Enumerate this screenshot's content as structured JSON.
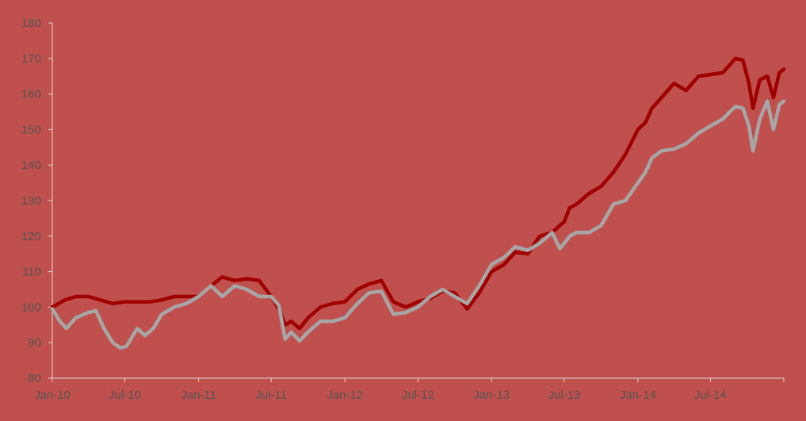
{
  "chart_data": {
    "type": "line",
    "title": "",
    "xlabel": "",
    "ylabel": "",
    "ylim": [
      80,
      180
    ],
    "yticks": [
      80,
      90,
      100,
      110,
      120,
      130,
      140,
      150,
      160,
      170,
      180
    ],
    "xlim": [
      "2010-01-01",
      "2014-12-31"
    ],
    "xticks": [
      {
        "date": "2010-01-01",
        "label": "Jan-10"
      },
      {
        "date": "2010-07-01",
        "label": "Jul-10"
      },
      {
        "date": "2011-01-01",
        "label": "Jan-11"
      },
      {
        "date": "2011-07-01",
        "label": "Jul-11"
      },
      {
        "date": "2012-01-01",
        "label": "Jan-12"
      },
      {
        "date": "2012-07-01",
        "label": "Jul-12"
      },
      {
        "date": "2013-01-01",
        "label": "Jan-13"
      },
      {
        "date": "2013-07-01",
        "label": "Jul-13"
      },
      {
        "date": "2014-01-01",
        "label": "Jan-14"
      },
      {
        "date": "2014-07-01",
        "label": "Jul-14"
      }
    ],
    "grid": false,
    "legend": "none",
    "background_color": "#c0504d",
    "series": [
      {
        "color": "#a00000",
        "points": [
          [
            "2010-01-01",
            100
          ],
          [
            "2010-02-01",
            102
          ],
          [
            "2010-03-01",
            103
          ],
          [
            "2010-04-01",
            103
          ],
          [
            "2010-05-01",
            102
          ],
          [
            "2010-06-01",
            101
          ],
          [
            "2010-07-01",
            101.5
          ],
          [
            "2010-08-01",
            101.5
          ],
          [
            "2010-09-01",
            101.5
          ],
          [
            "2010-10-01",
            102
          ],
          [
            "2010-11-01",
            103
          ],
          [
            "2010-12-01",
            103
          ],
          [
            "2011-01-01",
            103
          ],
          [
            "2011-02-01",
            106
          ],
          [
            "2011-03-01",
            108.5
          ],
          [
            "2011-04-01",
            107.5
          ],
          [
            "2011-05-01",
            108
          ],
          [
            "2011-06-01",
            107.5
          ],
          [
            "2011-07-01",
            103
          ],
          [
            "2011-07-20",
            99.5
          ],
          [
            "2011-08-05",
            95
          ],
          [
            "2011-08-20",
            96
          ],
          [
            "2011-09-10",
            94
          ],
          [
            "2011-10-01",
            97
          ],
          [
            "2011-11-01",
            100
          ],
          [
            "2011-12-01",
            101
          ],
          [
            "2012-01-01",
            101.5
          ],
          [
            "2012-02-01",
            105
          ],
          [
            "2012-03-01",
            106.5
          ],
          [
            "2012-04-01",
            107.5
          ],
          [
            "2012-05-01",
            101.5
          ],
          [
            "2012-06-01",
            100
          ],
          [
            "2012-07-01",
            101.5
          ],
          [
            "2012-08-01",
            102.5
          ],
          [
            "2012-09-01",
            104.5
          ],
          [
            "2012-10-01",
            104
          ],
          [
            "2012-11-01",
            99.5
          ],
          [
            "2012-12-01",
            104
          ],
          [
            "2013-01-01",
            110
          ],
          [
            "2013-02-01",
            112
          ],
          [
            "2013-03-01",
            115.5
          ],
          [
            "2013-04-01",
            115
          ],
          [
            "2013-05-01",
            120
          ],
          [
            "2013-06-01",
            121
          ],
          [
            "2013-06-20",
            123
          ],
          [
            "2013-07-01",
            124
          ],
          [
            "2013-07-15",
            128
          ],
          [
            "2013-08-01",
            129
          ],
          [
            "2013-09-01",
            132
          ],
          [
            "2013-10-01",
            134
          ],
          [
            "2013-11-01",
            138
          ],
          [
            "2013-12-01",
            143
          ],
          [
            "2014-01-01",
            150
          ],
          [
            "2014-01-20",
            152
          ],
          [
            "2014-02-05",
            156
          ],
          [
            "2014-03-01",
            159
          ],
          [
            "2014-04-01",
            163
          ],
          [
            "2014-05-01",
            161
          ],
          [
            "2014-06-01",
            165
          ],
          [
            "2014-07-01",
            165.5
          ],
          [
            "2014-08-01",
            166
          ],
          [
            "2014-09-01",
            170
          ],
          [
            "2014-09-20",
            169.5
          ],
          [
            "2014-10-05",
            163
          ],
          [
            "2014-10-15",
            156
          ],
          [
            "2014-11-01",
            164
          ],
          [
            "2014-11-20",
            165
          ],
          [
            "2014-12-05",
            159
          ],
          [
            "2014-12-20",
            166
          ],
          [
            "2014-12-31",
            167
          ]
        ]
      },
      {
        "color": "#a6a6a6",
        "points": [
          [
            "2010-01-01",
            99.5
          ],
          [
            "2010-01-20",
            96
          ],
          [
            "2010-02-05",
            94
          ],
          [
            "2010-03-01",
            97
          ],
          [
            "2010-04-01",
            98.5
          ],
          [
            "2010-04-20",
            99
          ],
          [
            "2010-05-10",
            94
          ],
          [
            "2010-06-01",
            90
          ],
          [
            "2010-06-20",
            88.5
          ],
          [
            "2010-07-05",
            89
          ],
          [
            "2010-08-01",
            94
          ],
          [
            "2010-08-20",
            92
          ],
          [
            "2010-09-10",
            94
          ],
          [
            "2010-10-01",
            98
          ],
          [
            "2010-11-01",
            100
          ],
          [
            "2010-12-01",
            101
          ],
          [
            "2011-01-01",
            103
          ],
          [
            "2011-02-01",
            106
          ],
          [
            "2011-03-01",
            103
          ],
          [
            "2011-04-01",
            106
          ],
          [
            "2011-05-01",
            105
          ],
          [
            "2011-06-01",
            103
          ],
          [
            "2011-07-01",
            103
          ],
          [
            "2011-07-20",
            100.5
          ],
          [
            "2011-08-05",
            91
          ],
          [
            "2011-08-20",
            93
          ],
          [
            "2011-09-10",
            90.5
          ],
          [
            "2011-10-01",
            93
          ],
          [
            "2011-11-01",
            96
          ],
          [
            "2011-12-01",
            96
          ],
          [
            "2012-01-01",
            97
          ],
          [
            "2012-02-01",
            101
          ],
          [
            "2012-03-01",
            104
          ],
          [
            "2012-04-01",
            104.5
          ],
          [
            "2012-05-01",
            98
          ],
          [
            "2012-06-01",
            98.5
          ],
          [
            "2012-07-01",
            100
          ],
          [
            "2012-08-01",
            103
          ],
          [
            "2012-09-01",
            105
          ],
          [
            "2012-10-01",
            103
          ],
          [
            "2012-11-01",
            101
          ],
          [
            "2012-12-01",
            106
          ],
          [
            "2013-01-01",
            112
          ],
          [
            "2013-02-01",
            114
          ],
          [
            "2013-03-01",
            117
          ],
          [
            "2013-04-01",
            116
          ],
          [
            "2013-05-01",
            118
          ],
          [
            "2013-06-01",
            121
          ],
          [
            "2013-06-20",
            116.5
          ],
          [
            "2013-07-01",
            118
          ],
          [
            "2013-07-15",
            120
          ],
          [
            "2013-08-01",
            121
          ],
          [
            "2013-09-01",
            121
          ],
          [
            "2013-10-01",
            123
          ],
          [
            "2013-11-01",
            129
          ],
          [
            "2013-12-01",
            130
          ],
          [
            "2014-01-01",
            135
          ],
          [
            "2014-01-20",
            138
          ],
          [
            "2014-02-05",
            142
          ],
          [
            "2014-03-01",
            144
          ],
          [
            "2014-04-01",
            144.5
          ],
          [
            "2014-05-01",
            146
          ],
          [
            "2014-06-01",
            149
          ],
          [
            "2014-07-01",
            151
          ],
          [
            "2014-08-01",
            153
          ],
          [
            "2014-09-01",
            156.5
          ],
          [
            "2014-09-20",
            156
          ],
          [
            "2014-10-05",
            151
          ],
          [
            "2014-10-15",
            144
          ],
          [
            "2014-11-01",
            153
          ],
          [
            "2014-11-20",
            158
          ],
          [
            "2014-12-05",
            150
          ],
          [
            "2014-12-20",
            157
          ],
          [
            "2014-12-31",
            158
          ]
        ]
      }
    ]
  }
}
